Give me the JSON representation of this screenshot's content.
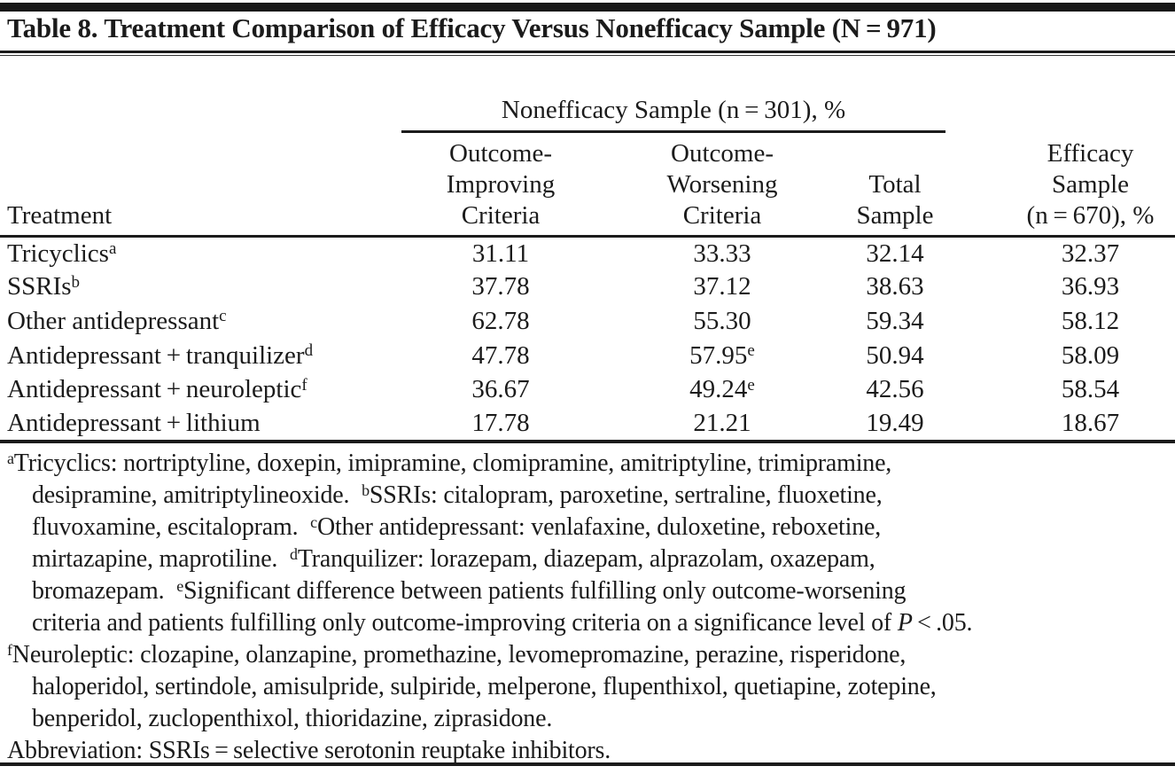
{
  "title": "Table 8. Treatment Comparison of Efficacy Versus Nonefficacy Sample (N = 971)",
  "table": {
    "spanner": "Nonefficacy Sample (n = 301), %",
    "col_headers": {
      "treatment": "Treatment",
      "improving": [
        "Outcome-",
        "Improving",
        "Criteria"
      ],
      "worsening": [
        "Outcome-",
        "Worsening",
        "Criteria"
      ],
      "total": [
        "Total",
        "Sample"
      ],
      "efficacy": [
        "Efficacy",
        "Sample",
        "(n = 670), %"
      ]
    },
    "rows": [
      {
        "label": "Tricyclics",
        "label_sup": "a",
        "values": [
          {
            "v": "31.11"
          },
          {
            "v": "33.33"
          },
          {
            "v": "32.14"
          },
          {
            "v": "32.37"
          }
        ]
      },
      {
        "label": "SSRIs",
        "label_sup": "b",
        "values": [
          {
            "v": "37.78"
          },
          {
            "v": "37.12"
          },
          {
            "v": "38.63"
          },
          {
            "v": "36.93"
          }
        ]
      },
      {
        "label": "Other antidepressant",
        "label_sup": "c",
        "values": [
          {
            "v": "62.78"
          },
          {
            "v": "55.30"
          },
          {
            "v": "59.34"
          },
          {
            "v": "58.12"
          }
        ]
      },
      {
        "label": "Antidepressant + tranquilizer",
        "label_sup": "d",
        "values": [
          {
            "v": "47.78"
          },
          {
            "v": "57.95",
            "sup": "e"
          },
          {
            "v": "50.94"
          },
          {
            "v": "58.09"
          }
        ]
      },
      {
        "label": "Antidepressant + neuroleptic",
        "label_sup": "f",
        "values": [
          {
            "v": "36.67"
          },
          {
            "v": "49.24",
            "sup": "e"
          },
          {
            "v": "42.56"
          },
          {
            "v": "58.54"
          }
        ]
      },
      {
        "label": "Antidepressant + lithium",
        "label_sup": "",
        "values": [
          {
            "v": "17.78"
          },
          {
            "v": "21.21"
          },
          {
            "v": "19.49"
          },
          {
            "v": "18.67"
          }
        ]
      }
    ]
  },
  "footnotes": {
    "lines": [
      {
        "indent": false,
        "parts": [
          {
            "sup": "a"
          },
          {
            "text": "Tricyclics: nortriptyline, doxepin, imipramine, clomipramine, amitriptyline, trimipramine,"
          }
        ]
      },
      {
        "indent": true,
        "parts": [
          {
            "text": "desipramine, amitriptylineoxide. "
          },
          {
            "sup": "b"
          },
          {
            "text": "SSRIs: citalopram, paroxetine, sertraline, fluoxetine,"
          }
        ]
      },
      {
        "indent": true,
        "parts": [
          {
            "text": "fluvoxamine, escitalopram. "
          },
          {
            "sup": "c"
          },
          {
            "text": "Other antidepressant: venlafaxine, duloxetine, reboxetine,"
          }
        ]
      },
      {
        "indent": true,
        "parts": [
          {
            "text": "mirtazapine, maprotiline. "
          },
          {
            "sup": "d"
          },
          {
            "text": "Tranquilizer: lorazepam, diazepam, alprazolam, oxazepam,"
          }
        ]
      },
      {
        "indent": true,
        "parts": [
          {
            "text": "bromazepam. "
          },
          {
            "sup": "e"
          },
          {
            "text": "Significant difference between patients fulfilling only outcome-worsening"
          }
        ]
      },
      {
        "indent": true,
        "parts": [
          {
            "text": "criteria and patients fulfilling only outcome-improving criteria on a significance level of "
          },
          {
            "italic": "P"
          },
          {
            "text": " < .05."
          }
        ]
      },
      {
        "indent": false,
        "parts": [
          {
            "sup": "f"
          },
          {
            "text": "Neuroleptic: clozapine, olanzapine, promethazine, levomepromazine, perazine, risperidone,"
          }
        ]
      },
      {
        "indent": true,
        "parts": [
          {
            "text": "haloperidol, sertindole, amisulpride, sulpiride, melperone, flupenthixol, quetiapine, zotepine,"
          }
        ]
      },
      {
        "indent": true,
        "parts": [
          {
            "text": "benperidol, zuclopenthixol, thioridazine, ziprasidone."
          }
        ]
      },
      {
        "indent": false,
        "parts": [
          {
            "text": "Abbreviation: SSRIs = selective serotonin reuptake inhibitors."
          }
        ]
      }
    ]
  },
  "colors": {
    "text": "#1b1b1b",
    "rule": "#1b1b1b",
    "top_bar": "#181818",
    "background": "#ffffff"
  }
}
